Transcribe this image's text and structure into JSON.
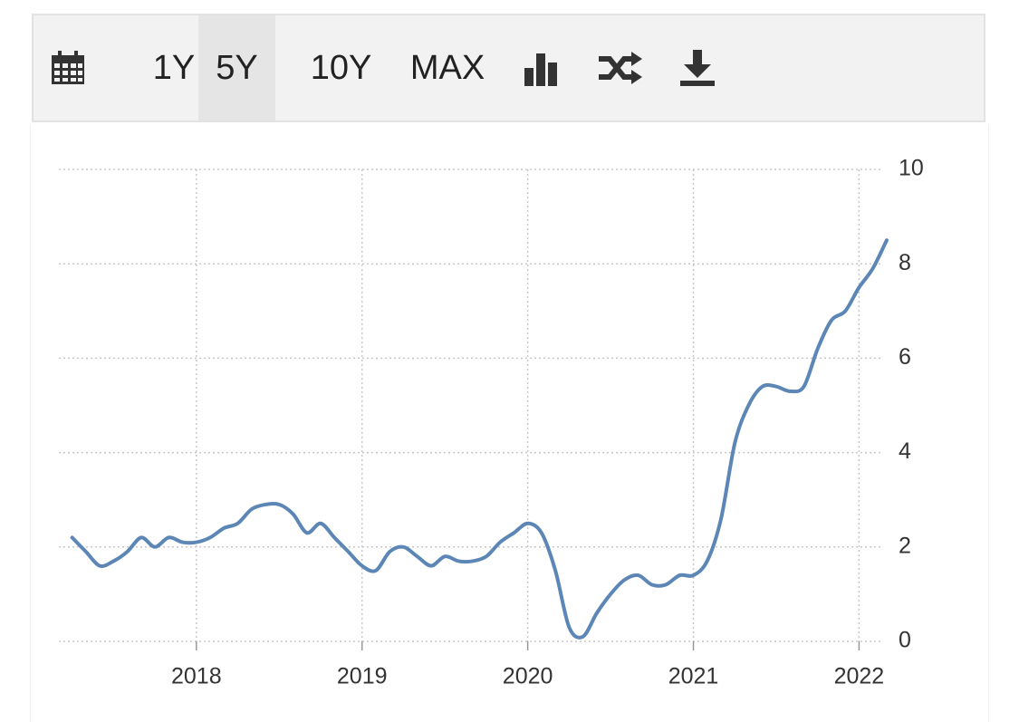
{
  "toolbar": {
    "ranges": [
      "1Y",
      "5Y",
      "10Y",
      "MAX"
    ],
    "selected": 1
  },
  "chart_data": {
    "type": "line",
    "x": [
      2017.25,
      2017.333,
      2017.417,
      2017.5,
      2017.583,
      2017.667,
      2017.75,
      2017.833,
      2017.917,
      2018.0,
      2018.083,
      2018.167,
      2018.25,
      2018.333,
      2018.417,
      2018.5,
      2018.583,
      2018.667,
      2018.75,
      2018.833,
      2018.917,
      2019.0,
      2019.083,
      2019.167,
      2019.25,
      2019.333,
      2019.417,
      2019.5,
      2019.583,
      2019.667,
      2019.75,
      2019.833,
      2019.917,
      2020.0,
      2020.083,
      2020.167,
      2020.25,
      2020.333,
      2020.417,
      2020.5,
      2020.583,
      2020.667,
      2020.75,
      2020.833,
      2020.917,
      2021.0,
      2021.083,
      2021.167,
      2021.25,
      2021.333,
      2021.417,
      2021.5,
      2021.583,
      2021.667,
      2021.75,
      2021.833,
      2021.917,
      2022.0,
      2022.083,
      2022.167
    ],
    "series": [
      {
        "color": "#5b86b5",
        "values": [
          2.2,
          1.9,
          1.6,
          1.7,
          1.9,
          2.2,
          2.0,
          2.2,
          2.1,
          2.1,
          2.2,
          2.4,
          2.5,
          2.8,
          2.9,
          2.9,
          2.7,
          2.3,
          2.5,
          2.2,
          1.9,
          1.6,
          1.5,
          1.9,
          2.0,
          1.8,
          1.6,
          1.8,
          1.7,
          1.7,
          1.8,
          2.1,
          2.3,
          2.5,
          2.3,
          1.5,
          0.3,
          0.1,
          0.6,
          1.0,
          1.3,
          1.4,
          1.2,
          1.2,
          1.4,
          1.4,
          1.7,
          2.6,
          4.2,
          5.0,
          5.4,
          5.4,
          5.3,
          5.4,
          6.2,
          6.8,
          7.0,
          7.5,
          7.9,
          8.5
        ]
      }
    ],
    "xlim": [
      2017.17,
      2022.2
    ],
    "xticks": [
      2018,
      2019,
      2020,
      2021,
      2022
    ],
    "ylim": [
      0,
      10
    ],
    "yticks": [
      0,
      2,
      4,
      6,
      8,
      10
    ],
    "grid": true
  }
}
